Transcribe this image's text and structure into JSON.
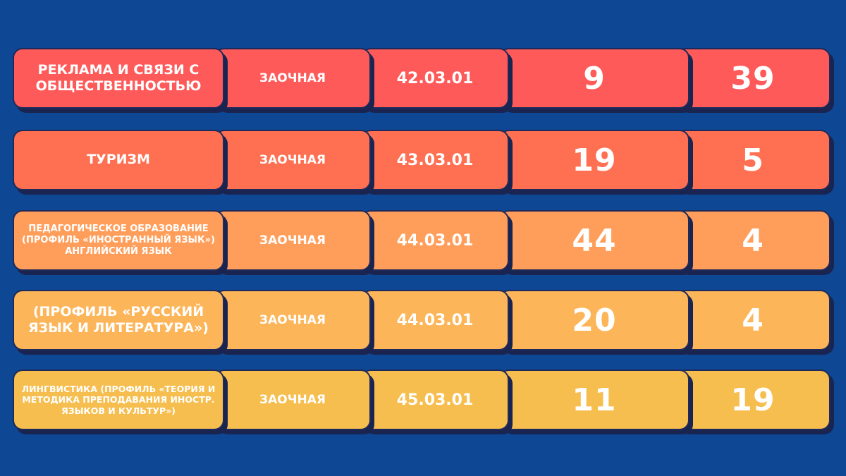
{
  "colors": {
    "background": "#0E4794",
    "row1": "#FF5A5A",
    "row2": "#FF7052",
    "row3": "#FF9E5A",
    "row4": "#FDB55A",
    "row5": "#F6BE4E"
  },
  "rows": [
    {
      "name": "РЕКЛАМА И СВЯЗИ С ОБЩЕСТВЕННОСТЬЮ",
      "form": "ЗАОЧНАЯ",
      "code": "42.03.01",
      "value1": "9",
      "value2": "39"
    },
    {
      "name": "ТУРИЗМ",
      "form": "ЗАОЧНАЯ",
      "code": "43.03.01",
      "value1": "19",
      "value2": "5"
    },
    {
      "name": "ПЕДАГОГИЧЕСКОЕ ОБРАЗОВАНИЕ (ПРОФИЛЬ «ИНОСТРАННЫЙ ЯЗЫК») АНГЛИЙСКИЙ ЯЗЫК",
      "form": "ЗАОЧНАЯ",
      "code": "44.03.01",
      "value1": "44",
      "value2": "4"
    },
    {
      "name": "(ПРОФИЛЬ «РУССКИЙ ЯЗЫК И ЛИТЕРАТУРА»)",
      "form": "ЗАОЧНАЯ",
      "code": "44.03.01",
      "value1": "20",
      "value2": "4"
    },
    {
      "name": "ЛИНГВИСТИКА (ПРОФИЛЬ «ТЕОРИЯ И МЕТОДИКА ПРЕПОДАВАНИЯ ИНОСТР. ЯЗЫКОВ И КУЛЬТУР»)",
      "form": "ЗАОЧНАЯ",
      "code": "45.03.01",
      "value1": "11",
      "value2": "19"
    }
  ]
}
